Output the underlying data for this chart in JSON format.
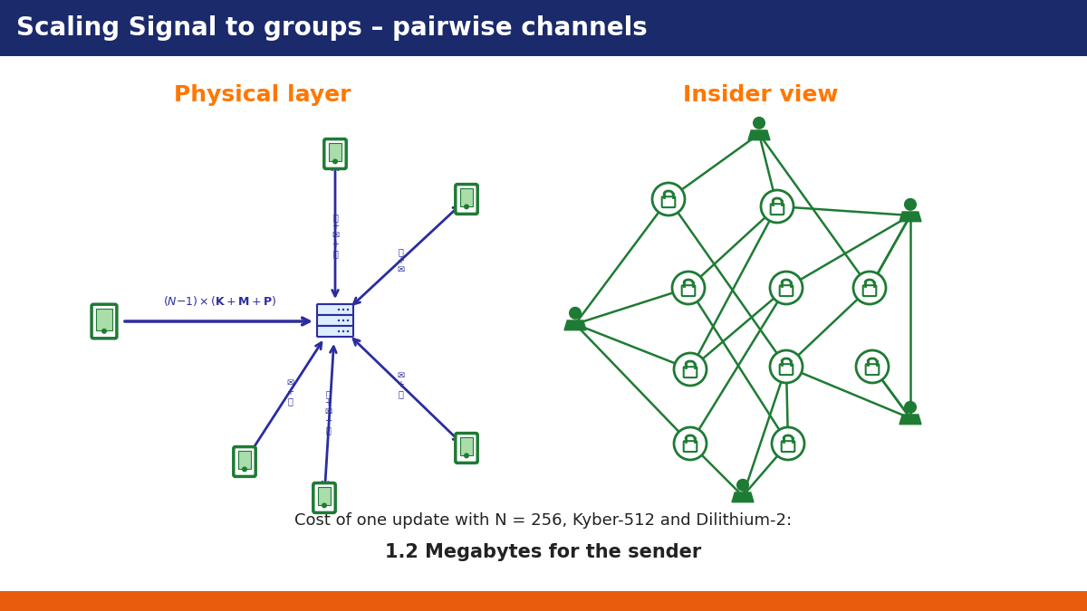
{
  "title": "Scaling Signal to groups – pairwise channels",
  "title_color": "#FFFFFF",
  "title_bg_color": "#1B2A6B",
  "bg_color": "#F5F5F5",
  "left_label": "Physical layer",
  "right_label": "Insider view",
  "label_color": "#FF7700",
  "bottom_text1": "Cost of one update with N = 256, Kyber-512 and Dilithium-2:",
  "bottom_text2": "1.2 Megabytes for the sender",
  "bottom_text_color": "#222222",
  "footer_color": "#E85C0D",
  "arrow_color": "#2B2D9E",
  "node_color": "#1E7B34",
  "panel_bg": "#FFFFFF",
  "server_fill": "#DDEEFF",
  "server_edge": "#2B2D9E"
}
